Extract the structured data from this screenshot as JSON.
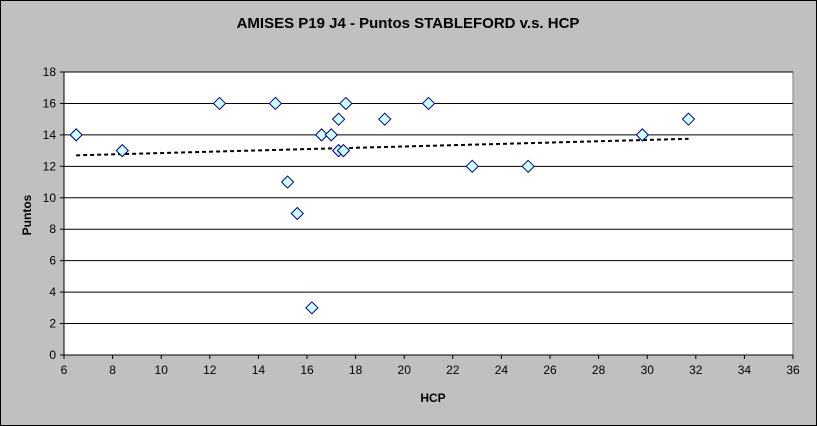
{
  "chart_data": {
    "type": "scatter",
    "title": "AMISES P19 J4 - Puntos STABLEFORD v.s. HCP",
    "xlabel": "HCP",
    "ylabel": "Puntos",
    "xlim": [
      6,
      36
    ],
    "ylim": [
      0,
      18
    ],
    "x_ticks": [
      6,
      8,
      10,
      12,
      14,
      16,
      18,
      20,
      22,
      24,
      26,
      28,
      30,
      32,
      34,
      36
    ],
    "y_ticks": [
      0,
      2,
      4,
      6,
      8,
      10,
      12,
      14,
      16,
      18
    ],
    "grid": true,
    "legend": "none",
    "marker": "diamond",
    "marker_fill": "#ccffff",
    "marker_edge": "#000080",
    "plot_background": "#ffffff",
    "chart_background": "#c0c0c0",
    "series": [
      {
        "points": [
          [
            6.5,
            14
          ],
          [
            8.4,
            13
          ],
          [
            12.4,
            16
          ],
          [
            14.7,
            16
          ],
          [
            15.2,
            11
          ],
          [
            15.6,
            9
          ],
          [
            16.2,
            3
          ],
          [
            16.6,
            14
          ],
          [
            17.0,
            14
          ],
          [
            17.3,
            15
          ],
          [
            17.3,
            13
          ],
          [
            17.5,
            13
          ],
          [
            17.6,
            16
          ],
          [
            19.2,
            15
          ],
          [
            21.0,
            16
          ],
          [
            22.8,
            12
          ],
          [
            25.1,
            12
          ],
          [
            29.8,
            14
          ],
          [
            31.7,
            15
          ]
        ]
      }
    ],
    "trendline": {
      "style": "dashed",
      "color": "#000000",
      "x": [
        6.5,
        31.7
      ],
      "y": [
        12.7,
        13.75
      ]
    }
  }
}
